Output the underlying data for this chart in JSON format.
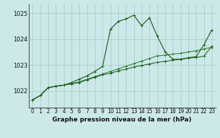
{
  "title": "Graphe pression niveau de la mer (hPa)",
  "bg_color": "#cce8e8",
  "grid_color": "#aacccc",
  "dark_green": "#1a5c1a",
  "xlim": [
    -0.5,
    23.5
  ],
  "ylim": [
    1021.35,
    1025.35
  ],
  "yticks": [
    1022,
    1023,
    1024,
    1025
  ],
  "xticks": [
    0,
    1,
    2,
    3,
    4,
    5,
    6,
    7,
    8,
    9,
    10,
    11,
    12,
    13,
    14,
    15,
    16,
    17,
    18,
    19,
    20,
    21,
    22,
    23
  ],
  "series1_y": [
    1021.65,
    1021.82,
    1022.12,
    1022.18,
    1022.22,
    1022.32,
    1022.45,
    1022.58,
    1022.75,
    1022.95,
    1024.38,
    1024.68,
    1024.78,
    1024.92,
    1024.52,
    1024.82,
    1024.12,
    1023.52,
    1023.22,
    1023.22,
    1023.28,
    1023.32,
    1023.78,
    1024.35
  ],
  "series2_y": [
    1021.65,
    1021.82,
    1022.12,
    1022.18,
    1022.22,
    1022.28,
    1022.35,
    1022.45,
    1022.55,
    1022.65,
    1022.75,
    1022.85,
    1022.95,
    1023.05,
    1023.15,
    1023.25,
    1023.35,
    1023.38,
    1023.42,
    1023.45,
    1023.5,
    1023.55,
    1023.62,
    1023.68
  ],
  "series3_y": [
    1021.65,
    1021.82,
    1022.12,
    1022.18,
    1022.22,
    1022.27,
    1022.32,
    1022.42,
    1022.52,
    1022.62,
    1022.68,
    1022.77,
    1022.84,
    1022.92,
    1022.98,
    1023.04,
    1023.1,
    1023.14,
    1023.18,
    1023.22,
    1023.26,
    1023.29,
    1023.34,
    1023.72
  ]
}
